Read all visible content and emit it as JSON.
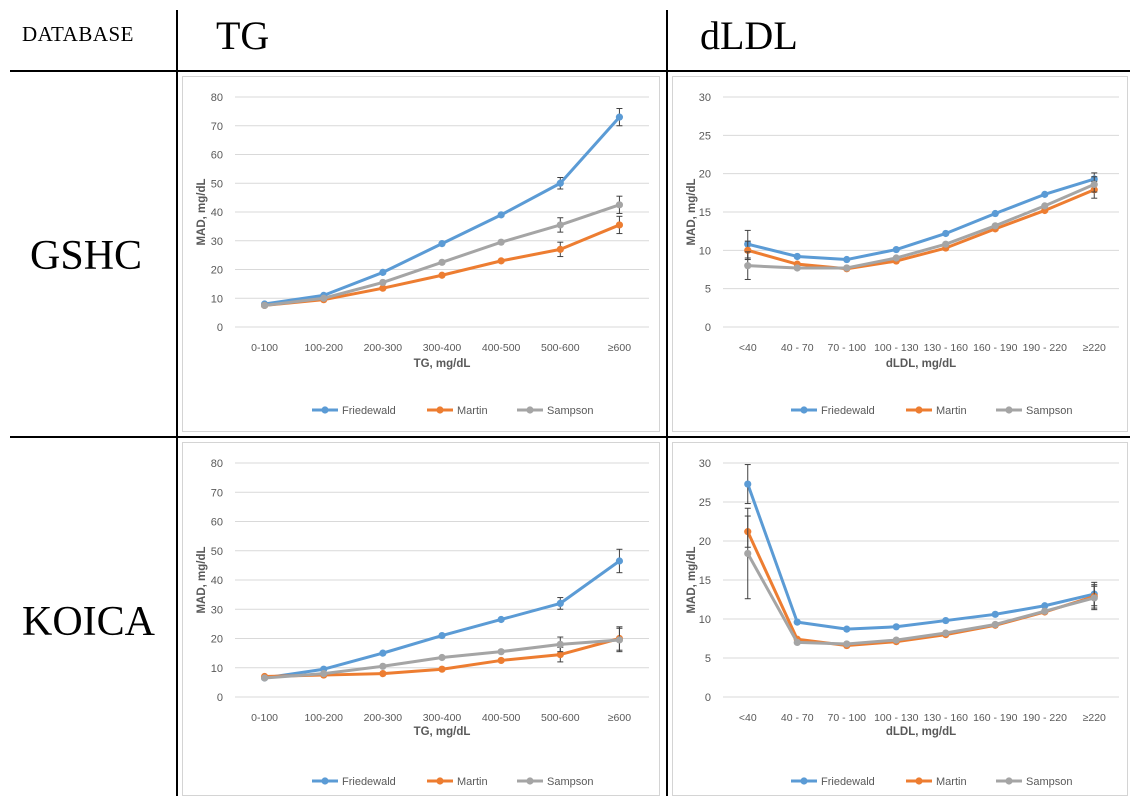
{
  "headers": {
    "database": "DATABASE",
    "col1": "TG",
    "col2": "dLDL"
  },
  "rows": [
    "GSHC",
    "KOICA"
  ],
  "colors": {
    "Friedewald": "#5b9bd5",
    "Martin": "#ed7d31",
    "Sampson": "#a5a5a5"
  },
  "chart_data": [
    {
      "id": "gshc-tg",
      "type": "line",
      "categories": [
        "0-100",
        "100-200",
        "200-300",
        "300-400",
        "400-500",
        "500-600",
        "≥600"
      ],
      "xlabel": "TG, mg/dL",
      "ylabel": "MAD, mg/dL",
      "ylim": [
        0,
        80
      ],
      "yticks": [
        0,
        10,
        20,
        30,
        40,
        50,
        60,
        70,
        80
      ],
      "grid": true,
      "legend": "bottom",
      "series": [
        {
          "name": "Friedewald",
          "values": [
            8,
            11,
            19,
            29,
            39,
            50,
            73
          ],
          "err": [
            0,
            0,
            0,
            0,
            0,
            2,
            3
          ]
        },
        {
          "name": "Martin",
          "values": [
            7.5,
            9.5,
            13.5,
            18,
            23,
            27,
            35.5
          ],
          "err": [
            0,
            0,
            0,
            0,
            0,
            2.5,
            3
          ]
        },
        {
          "name": "Sampson",
          "values": [
            7.5,
            10,
            15.5,
            22.5,
            29.5,
            35.5,
            42.5
          ],
          "err": [
            0,
            0,
            0,
            0,
            0,
            2.5,
            3
          ]
        }
      ]
    },
    {
      "id": "gshc-dldl",
      "type": "line",
      "categories": [
        "<40",
        "40 - 70",
        "70 - 100",
        "100 - 130",
        "130 - 160",
        "160 - 190",
        "190 - 220",
        "≥220"
      ],
      "xlabel": "dLDL, mg/dL",
      "ylabel": "MAD, mg/dL",
      "ylim": [
        0,
        30
      ],
      "yticks": [
        0,
        5,
        10,
        15,
        20,
        25,
        30
      ],
      "grid": true,
      "legend": "bottom",
      "series": [
        {
          "name": "Friedewald",
          "values": [
            10.8,
            9.2,
            8.8,
            10.1,
            12.2,
            14.8,
            17.3,
            19.3
          ],
          "err": [
            1.8,
            0,
            0,
            0,
            0,
            0,
            0,
            0.8
          ]
        },
        {
          "name": "Martin",
          "values": [
            10,
            8.2,
            7.6,
            8.6,
            10.3,
            12.8,
            15.2,
            17.9
          ],
          "err": [
            1.2,
            0,
            0,
            0,
            0,
            0,
            0,
            1.1
          ]
        },
        {
          "name": "Sampson",
          "values": [
            8,
            7.7,
            7.7,
            9,
            10.8,
            13.2,
            15.8,
            18.6
          ],
          "err": [
            1.8,
            0,
            0,
            0,
            0,
            0,
            0,
            1
          ]
        }
      ]
    },
    {
      "id": "koica-tg",
      "type": "line",
      "categories": [
        "0-100",
        "100-200",
        "200-300",
        "300-400",
        "400-500",
        "500-600",
        "≥600"
      ],
      "xlabel": "TG, mg/dL",
      "ylabel": "MAD, mg/dL",
      "ylim": [
        0,
        80
      ],
      "yticks": [
        0,
        10,
        20,
        30,
        40,
        50,
        60,
        70,
        80
      ],
      "grid": true,
      "legend": "bottom",
      "series": [
        {
          "name": "Friedewald",
          "values": [
            6.5,
            9.5,
            15,
            21,
            26.5,
            32,
            46.5
          ],
          "err": [
            0,
            0,
            0,
            0,
            0,
            2,
            4
          ]
        },
        {
          "name": "Martin",
          "values": [
            7,
            7.5,
            8,
            9.5,
            12.5,
            14.5,
            20
          ],
          "err": [
            0,
            0,
            0,
            0,
            0,
            2.5,
            4
          ]
        },
        {
          "name": "Sampson",
          "values": [
            6.5,
            8,
            10.5,
            13.5,
            15.5,
            18,
            19.5
          ],
          "err": [
            0,
            0,
            0,
            0,
            0,
            2.5,
            4
          ]
        }
      ]
    },
    {
      "id": "koica-dldl",
      "type": "line",
      "categories": [
        "<40",
        "40 - 70",
        "70 - 100",
        "100 - 130",
        "130 - 160",
        "160 - 190",
        "190 - 220",
        "≥220"
      ],
      "xlabel": "dLDL, mg/dL",
      "ylabel": "MAD, mg/dL",
      "ylim": [
        0,
        30
      ],
      "yticks": [
        0,
        5,
        10,
        15,
        20,
        25,
        30
      ],
      "grid": true,
      "legend": "bottom",
      "series": [
        {
          "name": "Friedewald",
          "values": [
            27.3,
            9.6,
            8.7,
            9,
            9.8,
            10.6,
            11.7,
            13.2
          ],
          "err": [
            2.5,
            0,
            0,
            0,
            0,
            0,
            0,
            1.5
          ]
        },
        {
          "name": "Martin",
          "values": [
            21.2,
            7.4,
            6.6,
            7.1,
            8,
            9.2,
            10.9,
            12.9
          ],
          "err": [
            2,
            0,
            0,
            0,
            0,
            0,
            0,
            1.5
          ]
        },
        {
          "name": "Sampson",
          "values": [
            18.4,
            7,
            6.8,
            7.3,
            8.2,
            9.3,
            11,
            12.7
          ],
          "err": [
            5.8,
            0,
            0,
            0,
            0,
            0,
            0,
            1.5
          ]
        }
      ]
    }
  ]
}
